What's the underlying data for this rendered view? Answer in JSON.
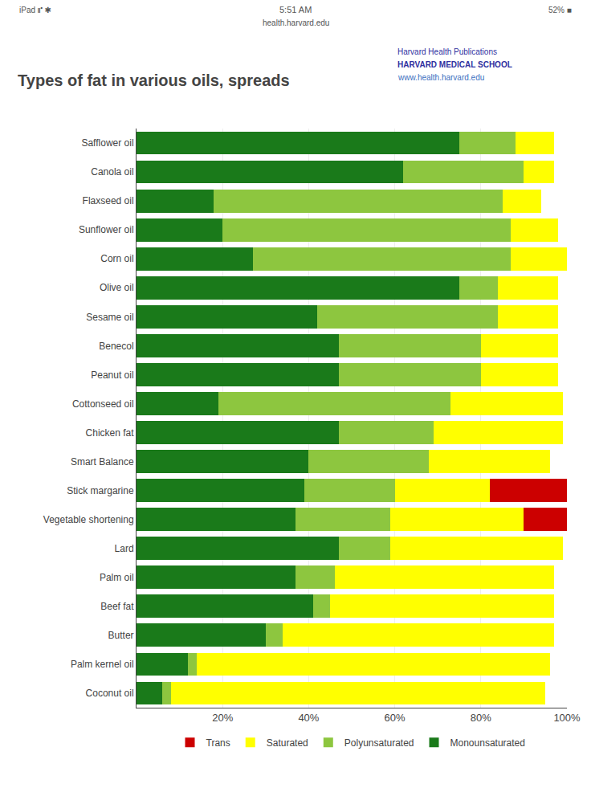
{
  "chart_data": {
    "type": "bar",
    "orientation": "horizontal",
    "stacked": true,
    "title": "Types of fat in various oils, spreads",
    "annotations": [
      "iPad ⑈ ✱",
      "5:51 AM",
      "health.harvard.edu",
      "52% ■",
      "Harvard Health Publications",
      "HARVARD MEDICAL SCHOOL",
      "www.health.harvard.edu"
    ],
    "categories": [
      "Safflower oil",
      "Canola oil",
      "Flaxseed oil",
      "Sunflower oil",
      "Corn oil",
      "Olive oil",
      "Sesame oil",
      "Benecol",
      "Peanut oil",
      "Cottonseed oil",
      "Chicken fat",
      "Smart Balance",
      "Stick margarine",
      "Vegetable shortening",
      "Lard",
      "Palm oil",
      "Beef fat",
      "Butter",
      "Palm kernel oil",
      "Coconut oil"
    ],
    "series": [
      {
        "name": "Monounsaturated",
        "color": "#1a7a1a",
        "values": [
          75,
          62,
          18,
          20,
          27,
          75,
          42,
          47,
          47,
          19,
          47,
          40,
          39,
          37,
          47,
          37,
          41,
          30,
          12,
          6
        ]
      },
      {
        "name": "Polyunsaturated",
        "color": "#8dc63f",
        "values": [
          13,
          28,
          67,
          67,
          60,
          9,
          42,
          33,
          33,
          54,
          22,
          28,
          21,
          22,
          12,
          9,
          4,
          4,
          2,
          2
        ]
      },
      {
        "name": "Saturated",
        "color": "#ffff00",
        "values": [
          9,
          7,
          9,
          11,
          13,
          14,
          14,
          18,
          18,
          26,
          30,
          28,
          22,
          31,
          40,
          51,
          52,
          63,
          82,
          87
        ]
      },
      {
        "name": "Trans",
        "color": "#cc0000",
        "values": [
          0,
          0,
          0,
          0,
          0,
          0,
          0,
          0,
          0,
          0,
          0,
          0,
          18,
          10,
          0,
          0,
          0,
          0,
          0,
          0
        ]
      }
    ],
    "xlim": [
      0,
      100
    ],
    "xticks": [
      {
        "value": 20,
        "label": "20%"
      },
      {
        "value": 40,
        "label": "40%"
      },
      {
        "value": 60,
        "label": "60%"
      },
      {
        "value": 80,
        "label": "80%"
      },
      {
        "value": 100,
        "label": "100%"
      }
    ],
    "grid": true,
    "legend": "bottom"
  }
}
